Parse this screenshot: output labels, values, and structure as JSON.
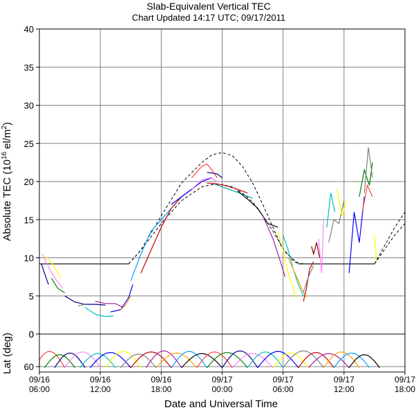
{
  "chart_data": [
    {
      "type": "line",
      "title": "Slab-Equivalent Vertical TEC",
      "subtitle": "Chart Updated 14:17 UTC; 09/17/2011",
      "xlabel": "Date and Universal Time",
      "ylabel": "Absolute TEC (10¹⁶ el/m²)",
      "ylabel_base": "Absolute TEC (10",
      "ylabel_exp": "16",
      "ylabel_unit": " el/m",
      "ylabel_unit_exp": "2",
      "ylabel_close": ")",
      "x_unit": "hours since 09/16 06:00 UTC",
      "xlim": [
        0,
        36
      ],
      "ylim": [
        0,
        40
      ],
      "grid": true,
      "x_ticks": [
        {
          "x": 0,
          "date": "09/16",
          "time": "06:00"
        },
        {
          "x": 6,
          "date": "09/16",
          "time": "12:00"
        },
        {
          "x": 12,
          "date": "09/16",
          "time": "18:00"
        },
        {
          "x": 18,
          "date": "09/17",
          "time": "00:00"
        },
        {
          "x": 24,
          "date": "09/17",
          "time": "06:00"
        },
        {
          "x": 30,
          "date": "09/17",
          "time": "12:00"
        },
        {
          "x": 36,
          "date": "09/17",
          "time": "18:00"
        }
      ],
      "y_ticks": [
        "0",
        "5",
        "10",
        "15",
        "20",
        "25",
        "30",
        "35",
        "40"
      ],
      "series": [
        {
          "name": "",
          "style": "dashed",
          "color": "#000000",
          "x": [
            8.8,
            10,
            12,
            14,
            16,
            17,
            18,
            19,
            20,
            21,
            22,
            23,
            24,
            25,
            25.5,
            26
          ],
          "y": [
            9.2,
            11,
            15.5,
            19.8,
            22.5,
            23.5,
            23.8,
            23.4,
            22,
            19.8,
            17,
            14,
            11,
            9.8,
            9.3,
            9.2
          ]
        },
        {
          "name": "",
          "style": "dashed",
          "color": "#000000",
          "x": [
            8.8,
            10,
            12,
            14,
            16,
            17,
            18,
            19,
            20,
            21,
            22,
            23,
            24,
            25,
            25.5
          ],
          "y": [
            9.2,
            11,
            14.5,
            17.5,
            19.3,
            19.6,
            19.6,
            19.3,
            18.5,
            17.3,
            15.5,
            13.5,
            11.2,
            9.6,
            9.2
          ]
        },
        {
          "name": "",
          "style": "solid",
          "color": "#000000",
          "x": [
            0,
            8.8
          ],
          "y": [
            9.2,
            9.2
          ]
        },
        {
          "name": "",
          "style": "solid",
          "color": "#000000",
          "x": [
            25.5,
            33
          ],
          "y": [
            9.2,
            9.2
          ]
        },
        {
          "name": "",
          "style": "dashed",
          "color": "#000000",
          "x": [
            33,
            35,
            36
          ],
          "y": [
            9.2,
            14,
            16
          ]
        },
        {
          "name": "",
          "style": "dashed",
          "color": "#000000",
          "x": [
            33,
            35,
            36
          ],
          "y": [
            9.2,
            13,
            14.5
          ]
        },
        {
          "name": "",
          "style": "solid",
          "color": "#00c0c0",
          "x": [
            4.5,
            5.5,
            6.5,
            7.3
          ],
          "y": [
            3.5,
            2.6,
            2.3,
            2.4
          ]
        },
        {
          "name": "",
          "style": "solid",
          "color": "#000080",
          "x": [
            2.5,
            3.5,
            4.5,
            5.5,
            6.5
          ],
          "y": [
            5.0,
            4.2,
            3.9,
            3.9,
            3.8
          ]
        },
        {
          "name": "",
          "style": "solid",
          "color": "#a020a0",
          "x": [
            5.5,
            6.5,
            7.5,
            8.2
          ],
          "y": [
            4.3,
            4.0,
            4.0,
            3.5
          ]
        },
        {
          "name": "",
          "style": "solid",
          "color": "#808080",
          "x": [
            3.8,
            4.5
          ],
          "y": [
            3.7,
            3.9
          ]
        },
        {
          "name": "",
          "style": "solid",
          "color": "#ff80ff",
          "x": [
            0.3,
            1.0,
            1.6,
            2.3
          ],
          "y": [
            10.5,
            8.5,
            7.2,
            6.0
          ]
        },
        {
          "name": "",
          "style": "solid",
          "color": "#ffff00",
          "x": [
            0.6,
            1.4,
            2.1
          ],
          "y": [
            10.2,
            9.0,
            7.3
          ]
        },
        {
          "name": "",
          "style": "solid",
          "color": "#008000",
          "x": [
            1.2,
            1.8,
            2.5
          ],
          "y": [
            7.3,
            6.0,
            5.4
          ]
        },
        {
          "name": "",
          "style": "solid",
          "color": "#000080",
          "x": [
            0.2,
            0.5,
            0.9
          ],
          "y": [
            9.2,
            8.0,
            6.5
          ]
        },
        {
          "name": "",
          "style": "solid",
          "color": "#0000ff",
          "x": [
            7.0,
            8.0,
            8.8,
            9.2
          ],
          "y": [
            2.9,
            3.2,
            4.8,
            6.5
          ]
        },
        {
          "name": "",
          "style": "solid",
          "color": "#ffa000",
          "x": [
            8.0,
            8.5,
            9.0
          ],
          "y": [
            3.2,
            3.8,
            5.0
          ]
        },
        {
          "name": "",
          "style": "solid",
          "color": "#00a0ff",
          "x": [
            9.0,
            10,
            11,
            12,
            13
          ],
          "y": [
            7.0,
            10.5,
            13.5,
            15.0,
            16.5
          ]
        },
        {
          "name": "",
          "style": "solid",
          "color": "#c00000",
          "x": [
            10,
            11,
            12,
            13,
            14,
            15
          ],
          "y": [
            8.0,
            11.0,
            14.0,
            16.5,
            18.0,
            19.0
          ]
        },
        {
          "name": "",
          "style": "solid",
          "color": "#ff4040",
          "x": [
            15,
            16,
            16.5,
            17,
            17.5
          ],
          "y": [
            20.5,
            22.0,
            22.3,
            21.5,
            20.5
          ]
        },
        {
          "name": "",
          "style": "solid",
          "color": "#0000ff",
          "x": [
            13,
            14,
            15,
            16,
            17
          ],
          "y": [
            17.0,
            18.0,
            19.0,
            20.0,
            20.5
          ]
        },
        {
          "name": "",
          "style": "solid",
          "color": "#ff80ff",
          "x": [
            15,
            16,
            16.8,
            17.5
          ],
          "y": [
            19.0,
            20.2,
            20.5,
            20.0
          ]
        },
        {
          "name": "",
          "style": "solid",
          "color": "#000080",
          "x": [
            16.5,
            17.5,
            18
          ],
          "y": [
            21.2,
            21.0,
            20.5
          ]
        },
        {
          "name": "",
          "style": "solid",
          "color": "#00a0a0",
          "x": [
            17,
            18,
            19.5,
            21
          ],
          "y": [
            19.8,
            19.3,
            18.6,
            17.8
          ]
        },
        {
          "name": "",
          "style": "solid",
          "color": "#c00000",
          "x": [
            16.5,
            17.5,
            18.5,
            19.5,
            20.5
          ],
          "y": [
            19.8,
            19.7,
            19.4,
            19.0,
            18.5
          ]
        },
        {
          "name": "",
          "style": "solid",
          "color": "#000000",
          "x": [
            19.5,
            20.5,
            21.5,
            22.5,
            23.5
          ],
          "y": [
            18.8,
            17.7,
            16.5,
            14.5,
            14.0
          ]
        },
        {
          "name": "",
          "style": "solid",
          "color": "#a020a0",
          "x": [
            22,
            22.5,
            23,
            23.5,
            24.2
          ],
          "y": [
            15.5,
            14.0,
            12.5,
            10.5,
            7.5
          ]
        },
        {
          "name": "",
          "style": "solid",
          "color": "#ffff00",
          "x": [
            23.5,
            24,
            24.5,
            25,
            25.3
          ],
          "y": [
            13.5,
            11.0,
            8.0,
            6.0,
            4.8
          ]
        },
        {
          "name": "",
          "style": "solid",
          "color": "#00c0c0",
          "x": [
            24,
            24.5,
            25,
            25.5,
            26
          ],
          "y": [
            13.0,
            11.0,
            8.5,
            6.5,
            5.0
          ]
        },
        {
          "name": "",
          "style": "solid",
          "color": "#ffa000",
          "x": [
            24.5,
            25,
            25.5,
            26,
            26.3
          ],
          "y": [
            10.0,
            8.5,
            7.0,
            5.5,
            4.8
          ]
        },
        {
          "name": "",
          "style": "solid",
          "color": "#c00000",
          "x": [
            26.0,
            26.3,
            26.6,
            27.0
          ],
          "y": [
            4.3,
            6.0,
            8.5,
            9.5
          ]
        },
        {
          "name": "",
          "style": "solid",
          "color": "#808080",
          "x": [
            26,
            26.5,
            27
          ],
          "y": [
            5.5,
            7.5,
            9.0
          ]
        },
        {
          "name": "",
          "style": "solid",
          "color": "#800000",
          "x": [
            26.8,
            27,
            27.3,
            27.6
          ],
          "y": [
            11.5,
            10.5,
            12.0,
            10.0
          ]
        },
        {
          "name": "",
          "style": "solid",
          "color": "#ff80ff",
          "x": [
            27.5,
            27.8,
            28.0
          ],
          "y": [
            12.5,
            8.0,
            15.0
          ]
        },
        {
          "name": "",
          "style": "solid",
          "color": "#808080",
          "x": [
            28.5,
            29,
            29.5,
            30
          ],
          "y": [
            12.0,
            15.0,
            14.5,
            17.5
          ]
        },
        {
          "name": "",
          "style": "solid",
          "color": "#00c0c0",
          "x": [
            28.3,
            28.7,
            29.1
          ],
          "y": [
            14.0,
            18.5,
            16.0
          ]
        },
        {
          "name": "",
          "style": "solid",
          "color": "#ffff00",
          "x": [
            29.3,
            29.8,
            30.3
          ],
          "y": [
            19.0,
            15.5,
            17.5
          ]
        },
        {
          "name": "",
          "style": "solid",
          "color": "#0000ff",
          "x": [
            30.5,
            31,
            31.5,
            32
          ],
          "y": [
            8.0,
            16.0,
            12.0,
            18.0
          ]
        },
        {
          "name": "",
          "style": "solid",
          "color": "#008000",
          "x": [
            31.5,
            32,
            32.5,
            32.8
          ],
          "y": [
            18.0,
            21.5,
            19.5,
            22.5
          ]
        },
        {
          "name": "",
          "style": "solid",
          "color": "#ff4040",
          "x": [
            31.8,
            32.3,
            32.8
          ],
          "y": [
            16.0,
            19.5,
            18.0
          ]
        },
        {
          "name": "",
          "style": "solid",
          "color": "#808080",
          "x": [
            32,
            32.4,
            32.8
          ],
          "y": [
            18.5,
            24.5,
            20.5
          ]
        },
        {
          "name": "",
          "style": "solid",
          "color": "#ffff00",
          "x": [
            33.0,
            33.2
          ],
          "y": [
            13.0,
            9.5
          ]
        }
      ]
    },
    {
      "type": "line",
      "title": "",
      "xlabel": "",
      "ylabel": "Lat (deg)",
      "ylim": [
        70,
        0
      ],
      "y_ticks": [
        "0",
        "60"
      ],
      "grid": true,
      "arc_colors": [
        "#ff4040",
        "#008000",
        "#000080",
        "#ff80ff",
        "#00c0c0",
        "#0000ff",
        "#ffff00",
        "#808080",
        "#c00000",
        "#a020a0",
        "#ffa000",
        "#00a0ff",
        "#000000"
      ],
      "arcs": [
        {
          "x0": -0.5,
          "x1": 2.5,
          "peak": 32
        },
        {
          "x0": 0.5,
          "x1": 3.5,
          "peak": 38
        },
        {
          "x0": 1.5,
          "x1": 4.5,
          "peak": 35
        },
        {
          "x0": 2.5,
          "x1": 6.0,
          "peak": 33
        },
        {
          "x0": 4.0,
          "x1": 7.5,
          "peak": 36
        },
        {
          "x0": 5.0,
          "x1": 9.0,
          "peak": 34
        },
        {
          "x0": 6.5,
          "x1": 10.0,
          "peak": 32
        },
        {
          "x0": 8.0,
          "x1": 11.5,
          "peak": 37
        },
        {
          "x0": 9.0,
          "x1": 13.0,
          "peak": 33
        },
        {
          "x0": 10.5,
          "x1": 14.0,
          "peak": 31
        },
        {
          "x0": 11.5,
          "x1": 15.5,
          "peak": 35
        },
        {
          "x0": 13.0,
          "x1": 16.5,
          "peak": 32
        },
        {
          "x0": 14.0,
          "x1": 18.0,
          "peak": 36
        },
        {
          "x0": 15.5,
          "x1": 19.0,
          "peak": 33
        },
        {
          "x0": 16.5,
          "x1": 20.5,
          "peak": 34
        },
        {
          "x0": 18.0,
          "x1": 21.5,
          "peak": 31
        },
        {
          "x0": 19.0,
          "x1": 23.0,
          "peak": 36
        },
        {
          "x0": 20.5,
          "x1": 24.0,
          "peak": 33
        },
        {
          "x0": 21.5,
          "x1": 25.5,
          "peak": 32
        },
        {
          "x0": 23.0,
          "x1": 26.5,
          "peak": 35
        },
        {
          "x0": 24.0,
          "x1": 28.0,
          "peak": 31
        },
        {
          "x0": 25.5,
          "x1": 29.0,
          "peak": 34
        },
        {
          "x0": 26.5,
          "x1": 30.5,
          "peak": 36
        },
        {
          "x0": 28.0,
          "x1": 31.5,
          "peak": 33
        },
        {
          "x0": 29.0,
          "x1": 32.5,
          "peak": 35
        },
        {
          "x0": 30.5,
          "x1": 33.5,
          "peak": 38
        }
      ]
    }
  ]
}
